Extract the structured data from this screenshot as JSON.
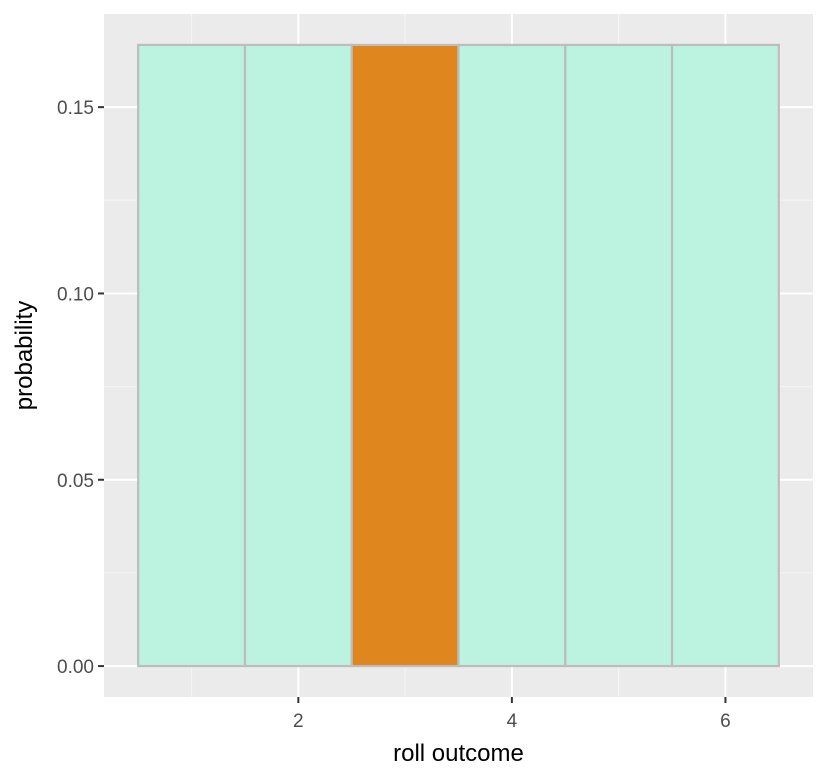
{
  "chart_data": {
    "type": "bar",
    "categories": [
      1,
      2,
      3,
      4,
      5,
      6
    ],
    "values": [
      0.1667,
      0.1667,
      0.1667,
      0.1667,
      0.1667,
      0.1667
    ],
    "highlight": [
      false,
      false,
      true,
      false,
      false,
      false
    ],
    "title": "",
    "xlabel": "roll outcome",
    "ylabel": "probability",
    "xlim": [
      0.18,
      6.82
    ],
    "ylim": [
      -0.0083,
      0.175
    ],
    "x_ticks": [
      2,
      4,
      6
    ],
    "x_tick_labels": [
      "2",
      "4",
      "6"
    ],
    "y_ticks": [
      0,
      0.05,
      0.1,
      0.15
    ],
    "y_tick_labels": [
      "0.00",
      "0.05",
      "0.10",
      "0.15"
    ],
    "grid": true,
    "legend": "none",
    "colors": {
      "bar_fill": "#b9f2df",
      "highlight_fill": "#e0861f",
      "bar_outline": "#bdbdbd",
      "panel_background": "#ebebeb",
      "grid_major": "#ffffff",
      "grid_minor": "#f5f5f5"
    }
  }
}
